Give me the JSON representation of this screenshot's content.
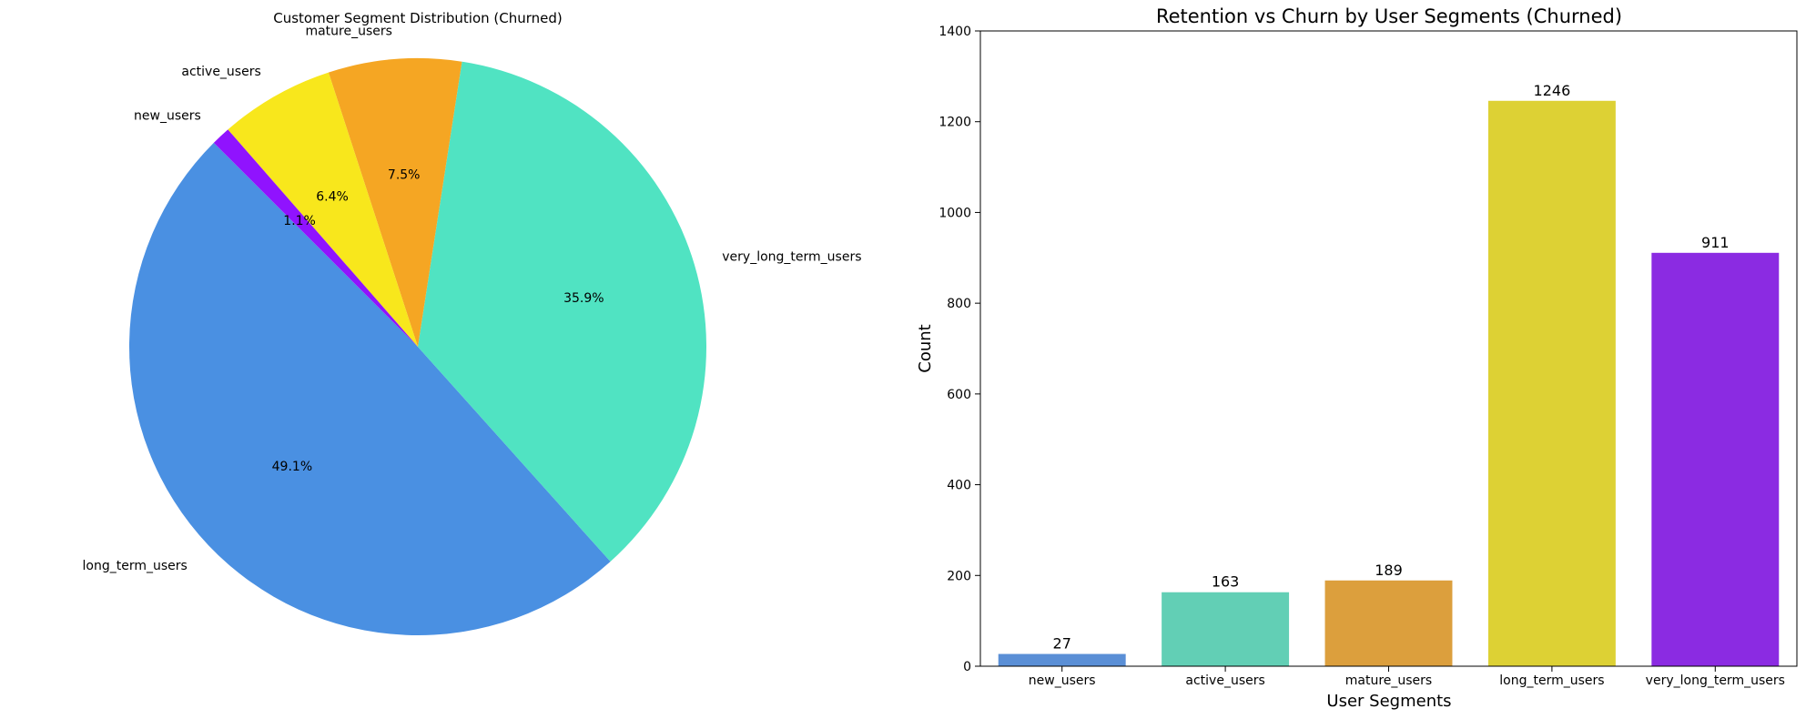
{
  "chart_data": [
    {
      "type": "pie",
      "title": "Customer Segment Distribution (Churned)",
      "labels": [
        "long_term_users",
        "very_long_term_users",
        "mature_users",
        "active_users",
        "new_users"
      ],
      "values": [
        1246,
        911,
        189,
        163,
        27
      ],
      "percent_labels": [
        "49.1%",
        "35.9%",
        "7.5%",
        "6.4%",
        "1.1%"
      ],
      "colors": [
        "#4a90e2",
        "#50e3c2",
        "#f5a623",
        "#f8e71c",
        "#9013fe"
      ],
      "start_angle_deg": 135,
      "direction": "counterclockwise"
    },
    {
      "type": "bar",
      "title": "Retention vs Churn by User Segments (Churned)",
      "categories": [
        "new_users",
        "active_users",
        "mature_users",
        "long_term_users",
        "very_long_term_users"
      ],
      "values": [
        27,
        163,
        189,
        1246,
        911
      ],
      "value_labels": [
        "27",
        "163",
        "189",
        "1246",
        "911"
      ],
      "colors": [
        "#5a8fd6",
        "#62cfb5",
        "#dc9f3d",
        "#ddd134",
        "#8b2be2"
      ],
      "xlabel": "User Segments",
      "ylabel": "Count",
      "ylim": [
        0,
        1400
      ],
      "yticks": [
        0,
        200,
        400,
        600,
        800,
        1000,
        1200,
        1400
      ],
      "grid": false
    }
  ]
}
